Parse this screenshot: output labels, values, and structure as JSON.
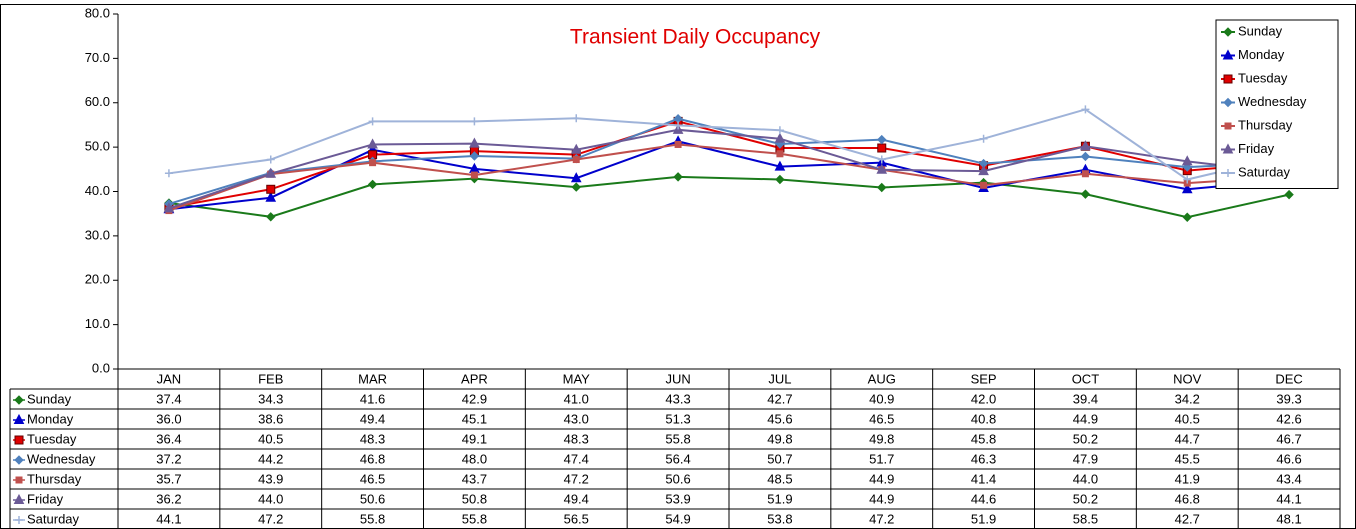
{
  "chart_data": {
    "type": "line",
    "title": "Transient Daily Occupancy",
    "categories": [
      "JAN",
      "FEB",
      "MAR",
      "APR",
      "MAY",
      "JUN",
      "JUL",
      "AUG",
      "SEP",
      "OCT",
      "NOV",
      "DEC"
    ],
    "ylim": [
      0,
      80
    ],
    "yticks": [
      {
        "value": 0,
        "label": "0.0"
      },
      {
        "value": 10,
        "label": "10.0"
      },
      {
        "value": 20,
        "label": "20.0"
      },
      {
        "value": 30,
        "label": "30.0"
      },
      {
        "value": 40,
        "label": "40.0"
      },
      {
        "value": 50,
        "label": "50.0"
      },
      {
        "value": 60,
        "label": "60.0"
      },
      {
        "value": 70,
        "label": "70.0"
      },
      {
        "value": 80,
        "label": "80.0"
      }
    ],
    "legend": "top-right",
    "series": [
      {
        "name": "Sunday",
        "color": "#1a7a1a",
        "marker": "diamond",
        "values": [
          37.4,
          34.3,
          41.6,
          42.9,
          41.0,
          43.3,
          42.7,
          40.9,
          42.0,
          39.4,
          34.2,
          39.3
        ],
        "value_labels": [
          "37.4",
          "34.3",
          "41.6",
          "42.9",
          "41.0",
          "43.3",
          "42.7",
          "40.9",
          "42.0",
          "39.4",
          "34.2",
          "39.3"
        ]
      },
      {
        "name": "Monday",
        "color": "#0000cc",
        "marker": "triangle",
        "values": [
          36.0,
          38.6,
          49.4,
          45.1,
          43.0,
          51.3,
          45.6,
          46.5,
          40.8,
          44.9,
          40.5,
          42.6
        ],
        "value_labels": [
          "36.0",
          "38.6",
          "49.4",
          "45.1",
          "43.0",
          "51.3",
          "45.6",
          "46.5",
          "40.8",
          "44.9",
          "40.5",
          "42.6"
        ]
      },
      {
        "name": "Tuesday",
        "color": "#e00000",
        "marker": "square",
        "values": [
          36.4,
          40.5,
          48.3,
          49.1,
          48.3,
          55.8,
          49.8,
          49.8,
          45.8,
          50.2,
          44.7,
          46.7
        ],
        "value_labels": [
          "36.4",
          "40.5",
          "48.3",
          "49.1",
          "48.3",
          "55.8",
          "49.8",
          "49.8",
          "45.8",
          "50.2",
          "44.7",
          "46.7"
        ]
      },
      {
        "name": "Wednesday",
        "color": "#4f81bd",
        "marker": "diamond",
        "values": [
          37.2,
          44.2,
          46.8,
          48.0,
          47.4,
          56.4,
          50.7,
          51.7,
          46.3,
          47.9,
          45.5,
          46.6
        ],
        "value_labels": [
          "37.2",
          "44.2",
          "46.8",
          "48.0",
          "47.4",
          "56.4",
          "50.7",
          "51.7",
          "46.3",
          "47.9",
          "45.5",
          "46.6"
        ]
      },
      {
        "name": "Thursday",
        "color": "#c0504d",
        "marker": "small-square",
        "values": [
          35.7,
          43.9,
          46.5,
          43.7,
          47.2,
          50.6,
          48.5,
          44.9,
          41.4,
          44.0,
          41.9,
          43.4
        ],
        "value_labels": [
          "35.7",
          "43.9",
          "46.5",
          "43.7",
          "47.2",
          "50.6",
          "48.5",
          "44.9",
          "41.4",
          "44.0",
          "41.9",
          "43.4"
        ]
      },
      {
        "name": "Friday",
        "color": "#6b5a96",
        "marker": "triangle",
        "values": [
          36.2,
          44.0,
          50.6,
          50.8,
          49.4,
          53.9,
          51.9,
          44.9,
          44.6,
          50.2,
          46.8,
          44.1
        ],
        "value_labels": [
          "36.2",
          "44.0",
          "50.6",
          "50.8",
          "49.4",
          "53.9",
          "51.9",
          "44.9",
          "44.6",
          "50.2",
          "46.8",
          "44.1"
        ]
      },
      {
        "name": "Saturday",
        "color": "#9fb3d9",
        "marker": "plus",
        "values": [
          44.1,
          47.2,
          55.8,
          55.8,
          56.5,
          54.9,
          53.8,
          47.2,
          51.9,
          58.5,
          42.7,
          48.1
        ],
        "value_labels": [
          "44.1",
          "47.2",
          "55.8",
          "55.8",
          "56.5",
          "54.9",
          "53.8",
          "47.2",
          "51.9",
          "58.5",
          "42.7",
          "48.1"
        ]
      }
    ]
  }
}
